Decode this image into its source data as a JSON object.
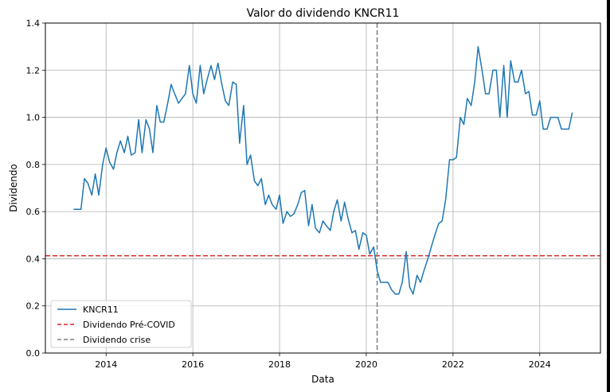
{
  "chart_data": {
    "type": "line",
    "title": "Valor do dividendo KNCR11",
    "xlabel": "Data",
    "ylabel": "Dividendo",
    "xlim": [
      2012.6,
      2025.4
    ],
    "ylim": [
      0.0,
      1.4
    ],
    "grid": true,
    "legend_position": "lower-left",
    "x_ticks": [
      2014,
      2016,
      2018,
      2020,
      2022,
      2024
    ],
    "x_tick_labels": [
      "2014",
      "2016",
      "2018",
      "2020",
      "2022",
      "2024"
    ],
    "y_ticks": [
      0.0,
      0.2,
      0.4,
      0.6,
      0.8,
      1.0,
      1.2,
      1.4
    ],
    "y_tick_labels": [
      "0.0",
      "0.2",
      "0.4",
      "0.6",
      "0.8",
      "1.0",
      "1.2",
      "1.4"
    ],
    "series": [
      {
        "name": "KNCR11",
        "color": "#1f77b4",
        "x": [
          2013.25,
          2013.33,
          2013.42,
          2013.5,
          2013.58,
          2013.67,
          2013.75,
          2013.83,
          2013.92,
          2014.0,
          2014.08,
          2014.17,
          2014.25,
          2014.33,
          2014.42,
          2014.5,
          2014.58,
          2014.67,
          2014.75,
          2014.83,
          2014.92,
          2015.0,
          2015.08,
          2015.17,
          2015.25,
          2015.33,
          2015.42,
          2015.5,
          2015.58,
          2015.67,
          2015.75,
          2015.83,
          2015.92,
          2016.0,
          2016.08,
          2016.17,
          2016.25,
          2016.33,
          2016.42,
          2016.5,
          2016.58,
          2016.67,
          2016.75,
          2016.83,
          2016.92,
          2017.0,
          2017.08,
          2017.17,
          2017.25,
          2017.33,
          2017.42,
          2017.5,
          2017.58,
          2017.67,
          2017.75,
          2017.83,
          2017.92,
          2018.0,
          2018.08,
          2018.17,
          2018.25,
          2018.33,
          2018.42,
          2018.5,
          2018.58,
          2018.67,
          2018.75,
          2018.83,
          2018.92,
          2019.0,
          2019.08,
          2019.17,
          2019.25,
          2019.33,
          2019.42,
          2019.5,
          2019.58,
          2019.67,
          2019.75,
          2019.83,
          2019.92,
          2020.0,
          2020.08,
          2020.17,
          2020.25,
          2020.33,
          2020.42,
          2020.5,
          2020.58,
          2020.67,
          2020.75,
          2020.83,
          2020.92,
          2021.0,
          2021.08,
          2021.17,
          2021.25,
          2021.33,
          2021.42,
          2021.5,
          2021.58,
          2021.67,
          2021.75,
          2021.83,
          2021.92,
          2022.0,
          2022.08,
          2022.17,
          2022.25,
          2022.33,
          2022.42,
          2022.5,
          2022.58,
          2022.67,
          2022.75,
          2022.83,
          2022.92,
          2023.0,
          2023.08,
          2023.17,
          2023.25,
          2023.33,
          2023.42,
          2023.5,
          2023.58,
          2023.67,
          2023.75,
          2023.83,
          2023.92,
          2024.0,
          2024.08,
          2024.17,
          2024.25,
          2024.33,
          2024.42,
          2024.5,
          2024.58,
          2024.67,
          2024.75
        ],
        "y": [
          0.61,
          0.61,
          0.61,
          0.74,
          0.72,
          0.67,
          0.76,
          0.67,
          0.8,
          0.87,
          0.81,
          0.78,
          0.85,
          0.9,
          0.85,
          0.92,
          0.84,
          0.85,
          0.99,
          0.85,
          0.99,
          0.95,
          0.85,
          1.05,
          0.98,
          0.98,
          1.06,
          1.14,
          1.1,
          1.06,
          1.08,
          1.1,
          1.22,
          1.1,
          1.06,
          1.22,
          1.1,
          1.16,
          1.22,
          1.16,
          1.23,
          1.14,
          1.07,
          1.05,
          1.15,
          1.14,
          0.89,
          1.05,
          0.8,
          0.84,
          0.73,
          0.71,
          0.74,
          0.63,
          0.67,
          0.63,
          0.61,
          0.67,
          0.55,
          0.6,
          0.58,
          0.59,
          0.63,
          0.68,
          0.69,
          0.54,
          0.63,
          0.53,
          0.51,
          0.56,
          0.54,
          0.52,
          0.6,
          0.65,
          0.56,
          0.64,
          0.57,
          0.51,
          0.52,
          0.44,
          0.51,
          0.5,
          0.42,
          0.45,
          0.35,
          0.3,
          0.3,
          0.3,
          0.27,
          0.25,
          0.25,
          0.3,
          0.43,
          0.28,
          0.25,
          0.33,
          0.3,
          0.35,
          0.4,
          0.45,
          0.5,
          0.55,
          0.56,
          0.65,
          0.82,
          0.82,
          0.83,
          1.0,
          0.97,
          1.08,
          1.05,
          1.15,
          1.3,
          1.2,
          1.1,
          1.1,
          1.2,
          1.2,
          1.0,
          1.22,
          1.0,
          1.24,
          1.15,
          1.15,
          1.2,
          1.1,
          1.11,
          1.01,
          1.01,
          1.07,
          0.95,
          0.95,
          1.0,
          1.0,
          1.0,
          0.95,
          0.95,
          0.95,
          1.02
        ]
      }
    ],
    "reference_lines": [
      {
        "name": "Dividendo Pré-COVID",
        "orientation": "horizontal",
        "value": 0.413,
        "color": "#d62728",
        "style": "dashed"
      },
      {
        "name": "Dividendo crise",
        "orientation": "vertical",
        "value": 2020.25,
        "color": "#7f7f7f",
        "style": "dashed"
      }
    ]
  }
}
